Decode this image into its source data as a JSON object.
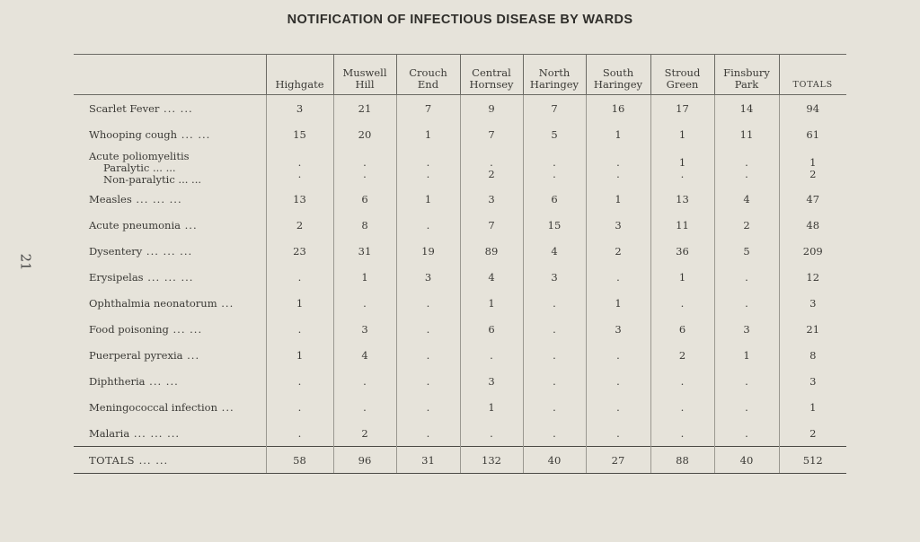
{
  "title": "NOTIFICATION OF INFECTIOUS DISEASE BY WARDS",
  "page_number": "21",
  "columns": [
    "Highgate",
    "Muswell\nHill",
    "Crouch\nEnd",
    "Central\nHornsey",
    "North\nHaringey",
    "South\nHaringey",
    "Stroud\nGreen",
    "Finsbury\nPark",
    "Totals"
  ],
  "rows": [
    {
      "label": "Scarlet Fever",
      "dots": "... ...",
      "values": [
        "3",
        "21",
        "7",
        "9",
        "7",
        "16",
        "17",
        "14",
        "94"
      ]
    },
    {
      "label": "Whooping cough",
      "dots": "... ...",
      "values": [
        "15",
        "20",
        "1",
        "7",
        "5",
        "1",
        "1",
        "11",
        "61"
      ]
    },
    {
      "label": "Measles",
      "dots": "... ... ...",
      "values": [
        "13",
        "6",
        "1",
        "3",
        "6",
        "1",
        "13",
        "4",
        "47"
      ]
    },
    {
      "label": "Acute pneumonia",
      "dots": "...",
      "values": [
        "2",
        "8",
        ".",
        "7",
        "15",
        "3",
        "11",
        "2",
        "48"
      ]
    },
    {
      "label": "Dysentery",
      "dots": "... ... ...",
      "values": [
        "23",
        "31",
        "19",
        "89",
        "4",
        "2",
        "36",
        "5",
        "209"
      ]
    },
    {
      "label": "Erysipelas",
      "dots": "... ... ...",
      "values": [
        ".",
        "1",
        "3",
        "4",
        "3",
        ".",
        "1",
        ".",
        "12"
      ]
    },
    {
      "label": "Ophthalmia neonatorum",
      "dots": "...",
      "values": [
        "1",
        ".",
        ".",
        "1",
        ".",
        "1",
        ".",
        ".",
        "3"
      ]
    },
    {
      "label": "Food poisoning",
      "dots": "... ...",
      "values": [
        ".",
        "3",
        ".",
        "6",
        ".",
        "3",
        "6",
        "3",
        "21"
      ]
    },
    {
      "label": "Puerperal pyrexia",
      "dots": "...",
      "values": [
        "1",
        "4",
        ".",
        ".",
        ".",
        ".",
        "2",
        "1",
        "8"
      ]
    },
    {
      "label": "Diphtheria",
      "dots": "... ...",
      "values": [
        ".",
        ".",
        ".",
        "3",
        ".",
        ".",
        ".",
        ".",
        "3"
      ]
    },
    {
      "label": "Meningococcal infection",
      "dots": "...",
      "values": [
        ".",
        ".",
        ".",
        "1",
        ".",
        ".",
        ".",
        ".",
        "1"
      ]
    },
    {
      "label": "Malaria",
      "dots": "... ... ...",
      "values": [
        ".",
        "2",
        ".",
        ".",
        ".",
        ".",
        ".",
        ".",
        "2"
      ]
    }
  ],
  "polio": {
    "label": "Acute poliomyelitis",
    "paralytic": {
      "label": "Paralytic",
      "dots": "... ...",
      "values": [
        ".",
        ".",
        ".",
        ".",
        ".",
        ".",
        "1",
        ".",
        "1"
      ]
    },
    "non_paralytic": {
      "label": "Non-paralytic",
      "dots": "... ...",
      "values": [
        ".",
        ".",
        ".",
        "2",
        ".",
        ".",
        ".",
        ".",
        "2"
      ]
    }
  },
  "totals": {
    "label": "TOTALS",
    "dots": "... ...",
    "values": [
      "58",
      "96",
      "31",
      "132",
      "40",
      "27",
      "88",
      "40",
      "512"
    ]
  }
}
